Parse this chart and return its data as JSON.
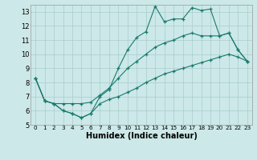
{
  "xlabel": "Humidex (Indice chaleur)",
  "bg_color": "#cce8e8",
  "line_color": "#1a7a6e",
  "grid_color": "#aacccc",
  "xlim": [
    -0.5,
    23.5
  ],
  "ylim": [
    5,
    13.5
  ],
  "xticks": [
    0,
    1,
    2,
    3,
    4,
    5,
    6,
    7,
    8,
    9,
    10,
    11,
    12,
    13,
    14,
    15,
    16,
    17,
    18,
    19,
    20,
    21,
    22,
    23
  ],
  "yticks": [
    5,
    6,
    7,
    8,
    9,
    10,
    11,
    12,
    13
  ],
  "series": [
    {
      "x": [
        0,
        1,
        2,
        3,
        4,
        5,
        6,
        7,
        8,
        9,
        10,
        11,
        12,
        13,
        14,
        15,
        16,
        17,
        18,
        19,
        20,
        21,
        22,
        23
      ],
      "y": [
        8.3,
        6.7,
        6.5,
        6.0,
        5.8,
        5.5,
        5.8,
        7.0,
        7.5,
        9.0,
        10.3,
        11.2,
        11.6,
        13.4,
        12.3,
        12.5,
        12.5,
        13.3,
        13.1,
        13.2,
        11.3,
        11.5,
        10.3,
        9.5
      ]
    },
    {
      "x": [
        0,
        1,
        2,
        3,
        4,
        5,
        6,
        7,
        8,
        9,
        10,
        11,
        12,
        13,
        14,
        15,
        16,
        17,
        18,
        19,
        20,
        21,
        22,
        23
      ],
      "y": [
        8.3,
        6.7,
        6.5,
        6.5,
        6.5,
        6.5,
        6.6,
        7.1,
        7.6,
        8.3,
        9.0,
        9.5,
        10.0,
        10.5,
        10.8,
        11.0,
        11.3,
        11.5,
        11.3,
        11.3,
        11.3,
        11.5,
        10.3,
        9.5
      ]
    },
    {
      "x": [
        0,
        1,
        2,
        3,
        4,
        5,
        6,
        7,
        8,
        9,
        10,
        11,
        12,
        13,
        14,
        15,
        16,
        17,
        18,
        19,
        20,
        21,
        22,
        23
      ],
      "y": [
        8.3,
        6.7,
        6.5,
        6.0,
        5.8,
        5.5,
        5.8,
        6.5,
        6.8,
        7.0,
        7.3,
        7.6,
        8.0,
        8.3,
        8.6,
        8.8,
        9.0,
        9.2,
        9.4,
        9.6,
        9.8,
        10.0,
        9.8,
        9.5
      ]
    }
  ]
}
